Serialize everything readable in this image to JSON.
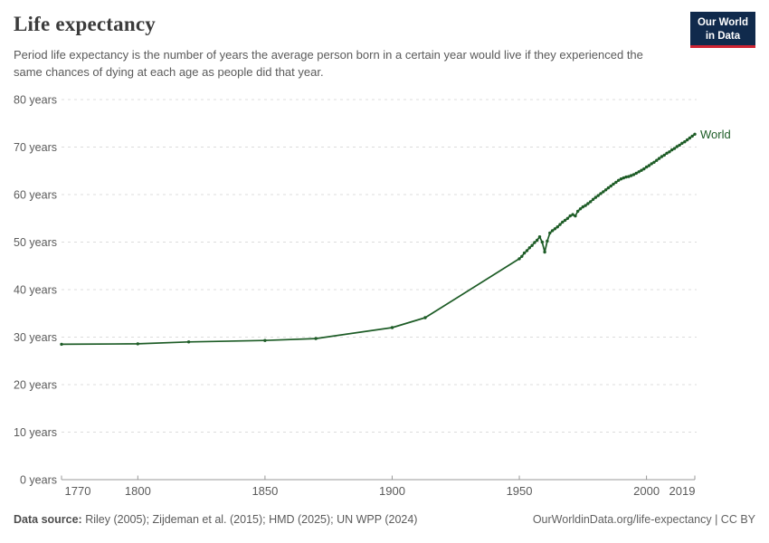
{
  "header": {
    "title": "Life expectancy",
    "subtitle": "Period life expectancy is the number of years the average person born in a certain year would live if they experienced the same chances of dying at each age as people did that year.",
    "logo": {
      "line1": "Our World",
      "line2": "in Data"
    }
  },
  "footer": {
    "source_label": "Data source:",
    "sources": " Riley (2005); Zijdeman et al. (2015); HMD (2025); UN WPP (2024)",
    "attribution": "OurWorldinData.org/life-expectancy | CC BY"
  },
  "chart_data": {
    "type": "line",
    "title": "Life expectancy",
    "xlabel": "",
    "ylabel": "",
    "x_range": [
      1770,
      2019
    ],
    "y_range": [
      0,
      80
    ],
    "y_tick_step": 10,
    "y_tick_suffix": " years",
    "x_ticks": [
      1770,
      1800,
      1850,
      1900,
      1950,
      2000,
      2019
    ],
    "grid": "horizontal-dashed",
    "legend": "end-of-line-label",
    "colors": {
      "line": "#1d5c26",
      "grid": "#dcdcdc",
      "axis": "#999999",
      "tick_label": "#5b5b5b"
    },
    "series": [
      {
        "name": "World",
        "color": "#1d5c26",
        "points": [
          [
            1770,
            28.5
          ],
          [
            1800,
            28.6
          ],
          [
            1820,
            29.0
          ],
          [
            1850,
            29.3
          ],
          [
            1870,
            29.7
          ],
          [
            1900,
            32.0
          ],
          [
            1913,
            34.1
          ],
          [
            1950,
            46.5
          ],
          [
            1951,
            47.0
          ],
          [
            1952,
            47.7
          ],
          [
            1953,
            48.2
          ],
          [
            1954,
            48.8
          ],
          [
            1955,
            49.3
          ],
          [
            1956,
            49.9
          ],
          [
            1957,
            50.4
          ],
          [
            1958,
            51.1
          ],
          [
            1959,
            50.0
          ],
          [
            1960,
            47.9
          ],
          [
            1961,
            50.2
          ],
          [
            1962,
            51.9
          ],
          [
            1963,
            52.4
          ],
          [
            1964,
            52.8
          ],
          [
            1965,
            53.2
          ],
          [
            1966,
            53.7
          ],
          [
            1967,
            54.2
          ],
          [
            1968,
            54.6
          ],
          [
            1969,
            55.0
          ],
          [
            1970,
            55.5
          ],
          [
            1971,
            55.8
          ],
          [
            1972,
            55.5
          ],
          [
            1973,
            56.5
          ],
          [
            1974,
            57.0
          ],
          [
            1975,
            57.4
          ],
          [
            1976,
            57.7
          ],
          [
            1977,
            58.1
          ],
          [
            1978,
            58.5
          ],
          [
            1979,
            59.0
          ],
          [
            1980,
            59.4
          ],
          [
            1981,
            59.8
          ],
          [
            1982,
            60.2
          ],
          [
            1983,
            60.6
          ],
          [
            1984,
            61.0
          ],
          [
            1985,
            61.4
          ],
          [
            1986,
            61.8
          ],
          [
            1987,
            62.2
          ],
          [
            1988,
            62.6
          ],
          [
            1989,
            63.0
          ],
          [
            1990,
            63.3
          ],
          [
            1991,
            63.5
          ],
          [
            1992,
            63.7
          ],
          [
            1993,
            63.8
          ],
          [
            1994,
            64.0
          ],
          [
            1995,
            64.2
          ],
          [
            1996,
            64.5
          ],
          [
            1997,
            64.8
          ],
          [
            1998,
            65.1
          ],
          [
            1999,
            65.4
          ],
          [
            2000,
            65.8
          ],
          [
            2001,
            66.1
          ],
          [
            2002,
            66.5
          ],
          [
            2003,
            66.8
          ],
          [
            2004,
            67.2
          ],
          [
            2005,
            67.6
          ],
          [
            2006,
            68.0
          ],
          [
            2007,
            68.3
          ],
          [
            2008,
            68.7
          ],
          [
            2009,
            69.0
          ],
          [
            2010,
            69.4
          ],
          [
            2011,
            69.7
          ],
          [
            2012,
            70.1
          ],
          [
            2013,
            70.4
          ],
          [
            2014,
            70.8
          ],
          [
            2015,
            71.1
          ],
          [
            2016,
            71.5
          ],
          [
            2017,
            71.9
          ],
          [
            2018,
            72.3
          ],
          [
            2019,
            72.7
          ]
        ]
      }
    ]
  }
}
